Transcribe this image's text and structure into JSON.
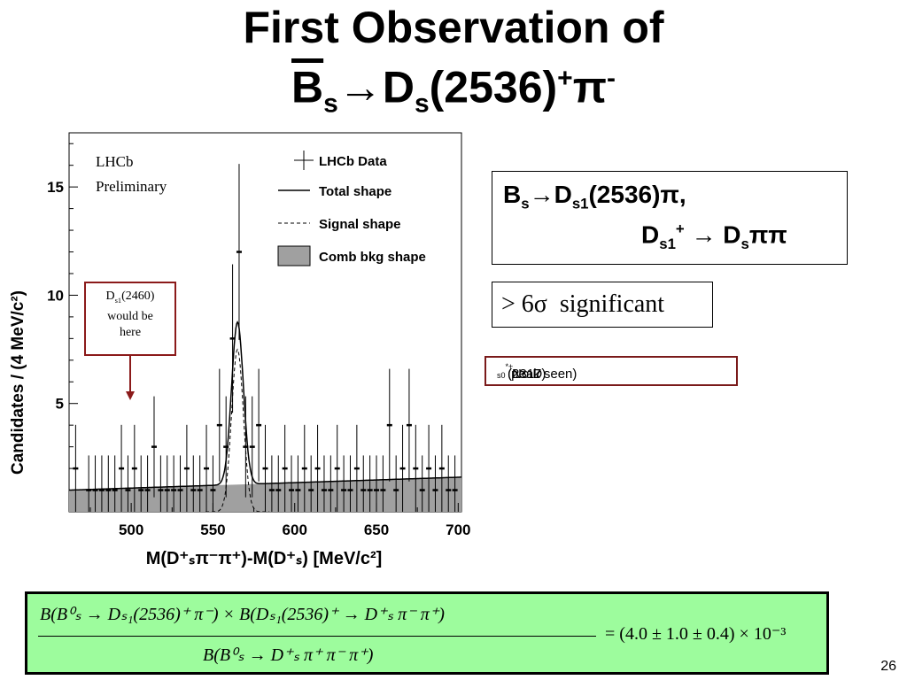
{
  "title": {
    "line1": "First Observation of",
    "bs": "B",
    "bs_sub": "s",
    "arrow": "→",
    "ds": "D",
    "ds_sub": "s",
    "mass": "(2536)",
    "plus": "+",
    "pi": "π",
    "minus": "-"
  },
  "decay_box": {
    "l1_b": "B",
    "l1_b_sub": "s",
    "l1_arrow": "→",
    "l1_d": "D",
    "l1_d_sub": "s1",
    "l1_rest": "(2536)π,",
    "l2_d": "D",
    "l2_d_sub": "s1",
    "l2_plus": "+",
    "l2_arrow": " → ",
    "l2_ds": "D",
    "l2_ds_sub": "s",
    "l2_pipi": "ππ"
  },
  "significance": "> 6σ  significant",
  "no_peak": {
    "pre": "(No D",
    "sub": "s0",
    "sup": "*",
    "post": "(2317)",
    "sup2": "+",
    "end": " peak seen)"
  },
  "annotation": {
    "d": "D",
    "sub": "s1",
    "mass": "(2460)",
    "l2": "would be",
    "l3": "here"
  },
  "formula": {
    "numerator": "B(B⁰ₛ → Dₛ₁(2536)⁺ π⁻) × B(Dₛ₁(2536)⁺ → D⁺ₛ π⁻ π⁺)",
    "denominator": "B(B⁰ₛ → D⁺ₛ π⁺ π⁻ π⁺)",
    "result": "= (4.0 ± 1.0 ± 0.4) × 10⁻³"
  },
  "page_number": "26",
  "colors": {
    "formula_bg": "#9dfc9d",
    "annotation_border": "#8b1a1a",
    "bkg_fill": "#a0a0a0"
  },
  "chart_data": {
    "type": "scatter",
    "experiment_label": [
      "LHCb",
      "Preliminary"
    ],
    "xlabel": "M(D⁺ₛπ⁻π⁺)-M(D⁺ₛ) [MeV/c²]",
    "ylabel": "Candidates / (4 MeV/c²)",
    "xlim": [
      462,
      702
    ],
    "ylim": [
      0,
      17.5
    ],
    "xticks": [
      500,
      550,
      600,
      650,
      700
    ],
    "yticks": [
      5,
      10,
      15
    ],
    "legend_position": "top-right",
    "legend": [
      "LHCb Data",
      "Total shape",
      "Signal shape",
      "Comb bkg shape"
    ],
    "data": {
      "x": [
        466,
        474,
        478,
        482,
        486,
        490,
        494,
        498,
        502,
        506,
        510,
        514,
        518,
        522,
        526,
        530,
        534,
        538,
        542,
        546,
        550,
        554,
        558,
        562,
        566,
        570,
        574,
        578,
        582,
        586,
        590,
        594,
        598,
        602,
        606,
        610,
        614,
        618,
        622,
        626,
        630,
        634,
        638,
        642,
        646,
        650,
        654,
        658,
        662,
        666,
        670,
        674,
        678,
        682,
        686,
        690,
        694,
        698
      ],
      "y": [
        2,
        1,
        1,
        1,
        1,
        1,
        2,
        1,
        2,
        1,
        1,
        3,
        1,
        1,
        1,
        1,
        2,
        1,
        1,
        2,
        1,
        4,
        3,
        8,
        12,
        3,
        3,
        4,
        2,
        1,
        1,
        2,
        1,
        1,
        2,
        1,
        2,
        1,
        1,
        2,
        1,
        1,
        2,
        1,
        1,
        1,
        1,
        4,
        1,
        2,
        4,
        2,
        1,
        2,
        1,
        2,
        1,
        1
      ]
    },
    "signal": {
      "mean": 565,
      "sigma": 3.6,
      "amplitude": 7.5
    },
    "background": {
      "x": [
        462,
        702
      ],
      "y": [
        1.0,
        1.6
      ]
    }
  }
}
